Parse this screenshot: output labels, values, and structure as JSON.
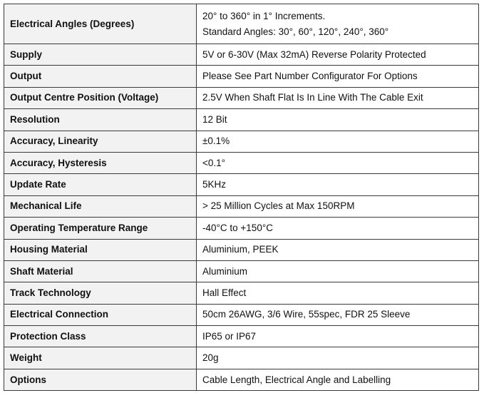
{
  "table": {
    "rows": [
      [
        "Electrical Angles (Degrees)",
        "20° to 360° in 1° Increments.",
        "Standard Angles: 30°, 60°, 120°, 240°, 360°"
      ],
      [
        "Supply",
        "5V or 6-30V (Max 32mA) Reverse Polarity Protected"
      ],
      [
        "Output",
        "Please See Part Number Configurator For Options"
      ],
      [
        "Output Centre Position (Voltage)",
        "2.5V When Shaft Flat Is In Line With The Cable Exit"
      ],
      [
        "Resolution",
        "12 Bit"
      ],
      [
        "Accuracy, Linearity",
        "±0.1%"
      ],
      [
        "Accuracy, Hysteresis",
        "<0.1°"
      ],
      [
        "Update Rate",
        "5KHz"
      ],
      [
        "Mechanical Life",
        "> 25 Million Cycles at Max 150RPM"
      ],
      [
        "Operating Temperature Range",
        "-40°C to +150°C"
      ],
      [
        "Housing Material",
        "Aluminium, PEEK"
      ],
      [
        "Shaft Material",
        "Aluminium"
      ],
      [
        "Track Technology",
        "Hall Effect"
      ],
      [
        "Electrical Connection",
        "50cm 26AWG, 3/6 Wire, 55spec, FDR 25 Sleeve"
      ],
      [
        "Protection Class",
        "IP65 or IP67"
      ],
      [
        "Weight",
        "20g"
      ],
      [
        "Options",
        "Cable Length, Electrical Angle and Labelling"
      ]
    ]
  }
}
